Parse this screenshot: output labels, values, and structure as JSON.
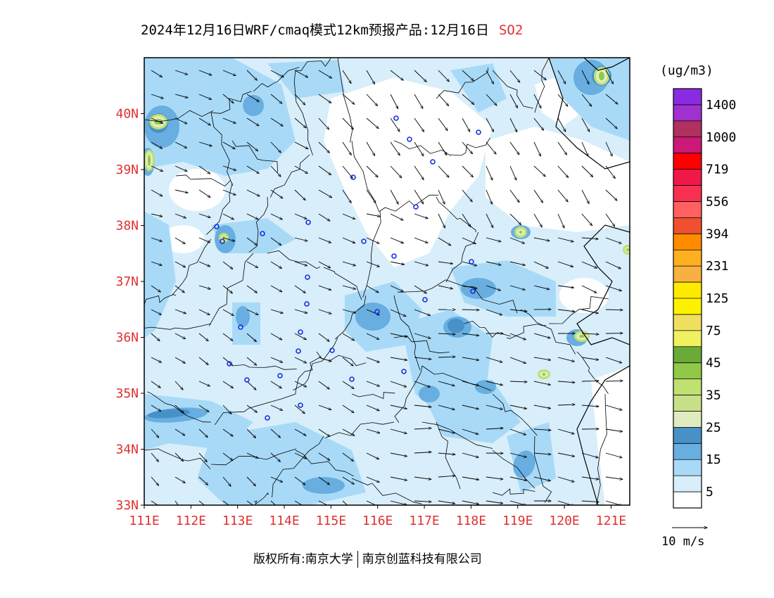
{
  "title": {
    "main": "2024年12月16日WRF/cmaq模式12km预报产品:12月16日",
    "pollutant": "SO2",
    "pollutant_color": "#e03030"
  },
  "map": {
    "lon_range": [
      111,
      121.4
    ],
    "lat_range": [
      33,
      41
    ],
    "lon_ticks": [
      "111E",
      "112E",
      "113E",
      "114E",
      "115E",
      "116E",
      "117E",
      "118E",
      "119E",
      "120E",
      "121E"
    ],
    "lat_ticks": [
      "33N",
      "34N",
      "35N",
      "36N",
      "37N",
      "38N",
      "39N",
      "40N"
    ],
    "tick_color": "#e03030"
  },
  "legend": {
    "unit": "(ug/m3)",
    "labels": [
      "1400",
      "1000",
      "719",
      "556",
      "394",
      "231",
      "125",
      "75",
      "45",
      "35",
      "25",
      "15",
      "5"
    ],
    "colors_top_to_bottom": [
      "#8a2be2",
      "#a030d0",
      "#b03060",
      "#cc1877",
      "#ff0000",
      "#f01848",
      "#f83050",
      "#ff6060",
      "#f05030",
      "#ff8c00",
      "#ffb020",
      "#f8b040",
      "#ffea00",
      "#fff200",
      "#f0e060",
      "#f0f060",
      "#6aaa38",
      "#90c848",
      "#c0e070",
      "#c8e088",
      "#e0ecc0",
      "#4890c8",
      "#68aee0",
      "#a8daf8",
      "#d8eefa",
      "#ffffff"
    ]
  },
  "wind_scale": {
    "label": "10 m/s"
  },
  "footer": {
    "left": "版权所有:南京大学",
    "right": "南京创蓝科技有限公司"
  }
}
